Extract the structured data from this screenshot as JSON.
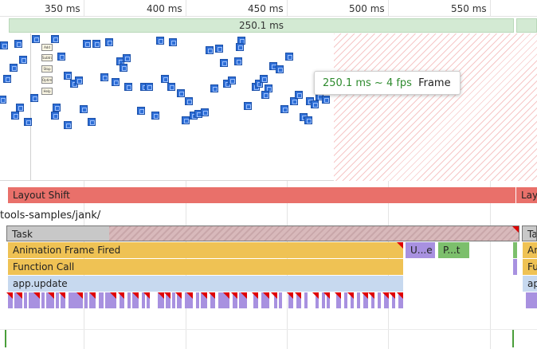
{
  "ruler": {
    "ticks": [
      "350 ms",
      "400 ms",
      "450 ms",
      "500 ms",
      "550 ms"
    ]
  },
  "frames": {
    "duration_label": "250.1 ms"
  },
  "tooltip": {
    "fps_text": "250.1 ms ~ 4 fps",
    "kind": "Frame"
  },
  "layout_shift": {
    "label": "Layout Shift",
    "label_right": "Layout Shift"
  },
  "thread": {
    "url": "tools-samples/jank/"
  },
  "flame": {
    "task": "Task",
    "task_right": "Task",
    "animation_frame": "Animation Frame Fired",
    "animation_frame_right": "Animation Frame Fired",
    "function_call": "Function Call",
    "function_call_right": "Function Call",
    "app_update": "app.update",
    "app_update_right": "app.update",
    "update_short": "U...e",
    "paint_short": "P...t"
  },
  "screenshot_labels": [
    "Add 10",
    "Subtract 10",
    "Stop",
    "Optimize",
    "Help"
  ],
  "colors": {
    "frame_green": "#d3ead3",
    "layout_shift": "#e9706a",
    "task": "#c8c8c8",
    "animation": "#efc254",
    "app_update": "#c7d9ef",
    "fps_green": "#2e8b2e"
  }
}
